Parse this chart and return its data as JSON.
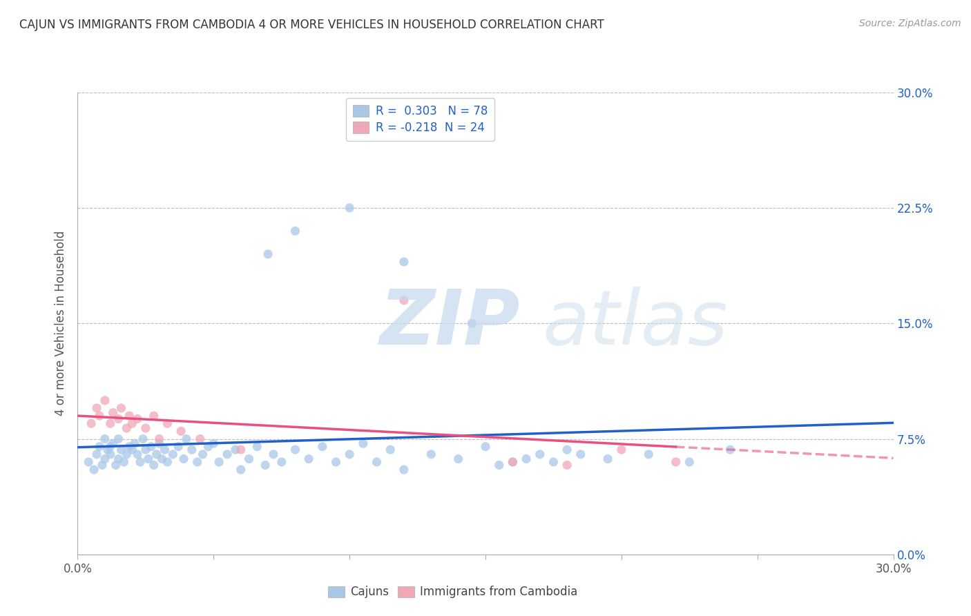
{
  "title": "CAJUN VS IMMIGRANTS FROM CAMBODIA 4 OR MORE VEHICLES IN HOUSEHOLD CORRELATION CHART",
  "source": "Source: ZipAtlas.com",
  "ylabel": "4 or more Vehicles in Household",
  "xlim": [
    0.0,
    0.3
  ],
  "ylim": [
    0.0,
    0.3
  ],
  "cajun_R": 0.303,
  "cajun_N": 78,
  "cambodia_R": -0.218,
  "cambodia_N": 24,
  "cajun_color": "#a8c8e8",
  "cambodia_color": "#f0a8b8",
  "cajun_line_color": "#2060c8",
  "cambodia_line_color": "#e85080",
  "ytick_vals": [
    0.0,
    0.075,
    0.15,
    0.225,
    0.3
  ],
  "ytick_labels": [
    "0.0%",
    "7.5%",
    "15.0%",
    "22.5%",
    "30.0%"
  ],
  "xtick_labels_left": "0.0%",
  "xtick_labels_right": "30.0%",
  "legend_labels": [
    "Cajuns",
    "Immigrants from Cambodia"
  ],
  "cajun_x": [
    0.004,
    0.006,
    0.007,
    0.008,
    0.009,
    0.01,
    0.01,
    0.011,
    0.012,
    0.012,
    0.013,
    0.014,
    0.015,
    0.015,
    0.016,
    0.017,
    0.018,
    0.019,
    0.02,
    0.021,
    0.022,
    0.023,
    0.024,
    0.025,
    0.026,
    0.027,
    0.028,
    0.029,
    0.03,
    0.031,
    0.032,
    0.033,
    0.035,
    0.037,
    0.039,
    0.04,
    0.042,
    0.044,
    0.046,
    0.048,
    0.05,
    0.052,
    0.055,
    0.058,
    0.06,
    0.063,
    0.066,
    0.069,
    0.072,
    0.075,
    0.08,
    0.085,
    0.09,
    0.095,
    0.1,
    0.105,
    0.11,
    0.115,
    0.12,
    0.13,
    0.14,
    0.15,
    0.16,
    0.17,
    0.18,
    0.195,
    0.21,
    0.225,
    0.24,
    0.155,
    0.165,
    0.175,
    0.185,
    0.07,
    0.08,
    0.1,
    0.12,
    0.145
  ],
  "cajun_y": [
    0.06,
    0.055,
    0.065,
    0.07,
    0.058,
    0.062,
    0.075,
    0.068,
    0.065,
    0.07,
    0.072,
    0.058,
    0.075,
    0.062,
    0.068,
    0.06,
    0.065,
    0.07,
    0.068,
    0.072,
    0.065,
    0.06,
    0.075,
    0.068,
    0.062,
    0.07,
    0.058,
    0.065,
    0.072,
    0.062,
    0.068,
    0.06,
    0.065,
    0.07,
    0.062,
    0.075,
    0.068,
    0.06,
    0.065,
    0.07,
    0.072,
    0.06,
    0.065,
    0.068,
    0.055,
    0.062,
    0.07,
    0.058,
    0.065,
    0.06,
    0.068,
    0.062,
    0.07,
    0.06,
    0.065,
    0.072,
    0.06,
    0.068,
    0.055,
    0.065,
    0.062,
    0.07,
    0.06,
    0.065,
    0.068,
    0.062,
    0.065,
    0.06,
    0.068,
    0.058,
    0.062,
    0.06,
    0.065,
    0.195,
    0.21,
    0.225,
    0.19,
    0.15
  ],
  "cambodia_x": [
    0.005,
    0.007,
    0.008,
    0.01,
    0.012,
    0.013,
    0.015,
    0.016,
    0.018,
    0.019,
    0.02,
    0.022,
    0.025,
    0.028,
    0.03,
    0.033,
    0.038,
    0.045,
    0.06,
    0.12,
    0.16,
    0.18,
    0.2,
    0.22
  ],
  "cambodia_y": [
    0.085,
    0.095,
    0.09,
    0.1,
    0.085,
    0.092,
    0.088,
    0.095,
    0.082,
    0.09,
    0.085,
    0.088,
    0.082,
    0.09,
    0.075,
    0.085,
    0.08,
    0.075,
    0.068,
    0.165,
    0.06,
    0.058,
    0.068,
    0.06
  ]
}
